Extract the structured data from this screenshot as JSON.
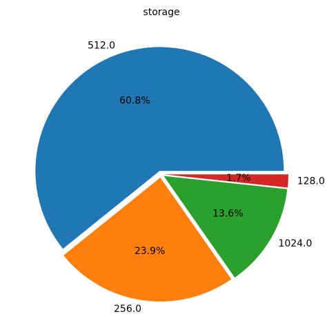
{
  "chart_data": {
    "type": "pie",
    "title": "storage",
    "categories": [
      "512.0",
      "256.0",
      "1024.0",
      "128.0"
    ],
    "values": [
      60.8,
      23.9,
      13.6,
      1.7
    ],
    "percent_labels": [
      "60.8%",
      "23.9%",
      "13.6%",
      "1.7%"
    ],
    "colors": [
      "#1f77b4",
      "#ff7f0e",
      "#2ca02c",
      "#d62728"
    ],
    "start_angle_deg": 0,
    "direction": "counterclockwise",
    "exploded": true,
    "legend": "none"
  }
}
